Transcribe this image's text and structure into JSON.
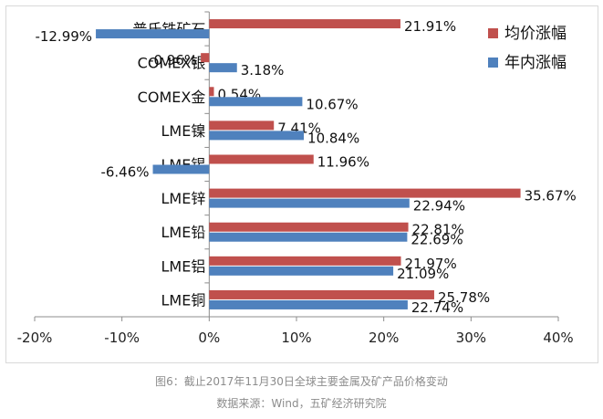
{
  "chart_data": {
    "type": "bar",
    "orientation": "horizontal",
    "categories": [
      "普氏铁矿石",
      "COMEX银",
      "COMEX金",
      "LME镍",
      "LME锡",
      "LME锌",
      "LME铅",
      "LME铝",
      "LME铜"
    ],
    "series": [
      {
        "name": "均价涨幅",
        "color": "#c0504d",
        "values": [
          21.91,
          -0.96,
          0.54,
          7.41,
          11.96,
          35.67,
          22.81,
          21.97,
          25.78
        ],
        "labels": [
          "21.91%",
          "-0.96%",
          "0.54%",
          "7.41%",
          "11.96%",
          "35.67%",
          "22.81%",
          "21.97%",
          "25.78%"
        ]
      },
      {
        "name": "年内涨幅",
        "color": "#4f81bd",
        "values": [
          -12.99,
          3.18,
          10.67,
          10.84,
          -6.46,
          22.94,
          22.69,
          21.09,
          22.74
        ],
        "labels": [
          "-12.99%",
          "3.18%",
          "10.67%",
          "10.84%",
          "-6.46%",
          "22.94%",
          "22.69%",
          "21.09%",
          "22.74%"
        ]
      }
    ],
    "xlim": [
      -20,
      40
    ],
    "xticks": [
      -20,
      -10,
      0,
      10,
      20,
      30,
      40
    ],
    "xtick_labels": [
      "-20%",
      "-10%",
      "0%",
      "10%",
      "20%",
      "30%",
      "40%"
    ],
    "legend": "top-right",
    "grid": false
  },
  "caption": "图6：截止2017年11月30日全球主要金属及矿产品价格变动",
  "source": "数据来源：Wind，五矿经济研究院"
}
